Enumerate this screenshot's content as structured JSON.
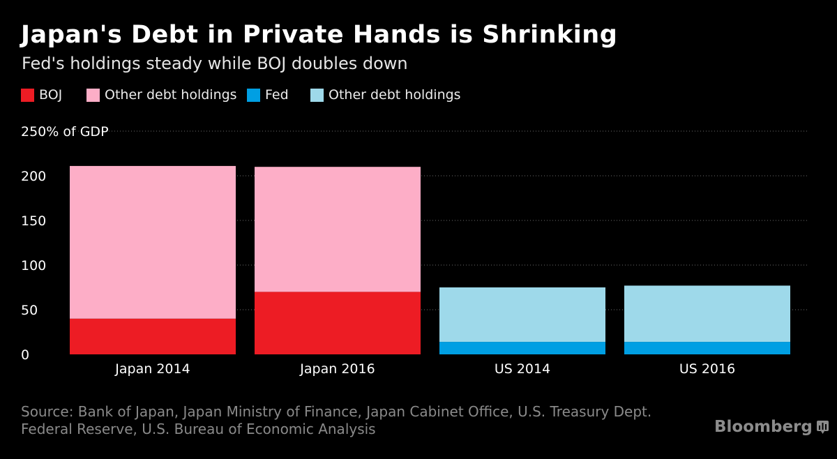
{
  "header": {
    "title": "Japan's Debt in Private Hands is Shrinking",
    "subtitle": "Fed's holdings steady while BOJ doubles down"
  },
  "legend": [
    {
      "label": "BOJ",
      "color": "#ed1c24"
    },
    {
      "label": "Other debt holdings",
      "color": "#fdaec7"
    },
    {
      "label": "Fed",
      "color": "#009fe3"
    },
    {
      "label": "Other debt holdings",
      "color": "#9ed9ea"
    }
  ],
  "footer": {
    "source_line1": "Source: Bank of Japan, Japan Ministry of Finance, Japan Cabinet Office, U.S. Treasury Dept.",
    "source_line2": "Federal Reserve, U.S. Bureau of Economic Analysis",
    "brand": "Bloomberg",
    "brand_icon": "bloomberg-chart-icon"
  },
  "chart_data": {
    "type": "bar",
    "stacked": true,
    "categories": [
      "Japan 2014",
      "Japan 2016",
      "US 2014",
      "US 2016"
    ],
    "series": [
      {
        "name": "BOJ",
        "color": "#ed1c24",
        "values": [
          40,
          70,
          0,
          0
        ]
      },
      {
        "name": "Other debt holdings",
        "color": "#fdaec7",
        "values": [
          171,
          140,
          0,
          0
        ]
      },
      {
        "name": "Fed",
        "color": "#009fe3",
        "values": [
          0,
          0,
          14,
          14
        ]
      },
      {
        "name": "Other debt holdings",
        "color": "#9ed9ea",
        "values": [
          0,
          0,
          61,
          63
        ]
      }
    ],
    "yticks": [
      0,
      50,
      100,
      150,
      200,
      250
    ],
    "ytick_labels": [
      "0",
      "50",
      "100",
      "150",
      "200",
      "250% of GDP"
    ],
    "ylim": [
      0,
      250
    ],
    "grid": true,
    "legend_position": "top"
  }
}
